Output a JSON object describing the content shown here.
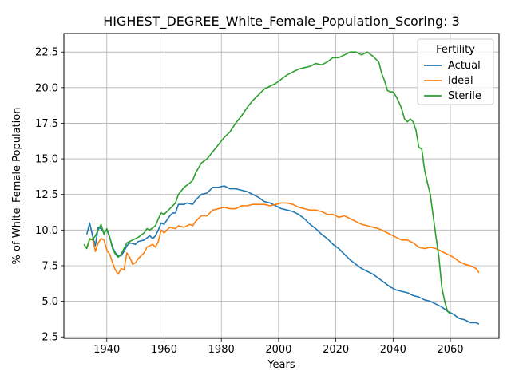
{
  "chart_data": {
    "type": "line",
    "title": "HIGHEST_DEGREE_White_Female_Population_Scoring: 3",
    "xlabel": "Years",
    "ylabel": "% of White_Female Population",
    "xlim": [
      1925,
      2077
    ],
    "ylim": [
      2.4,
      23.8
    ],
    "xticks": [
      1940,
      1960,
      1980,
      2000,
      2020,
      2040,
      2060
    ],
    "xtick_labels": [
      "1940",
      "1960",
      "1980",
      "2000",
      "2020",
      "2040",
      "2060"
    ],
    "yticks": [
      2.5,
      5.0,
      7.5,
      10.0,
      12.5,
      15.0,
      17.5,
      20.0,
      22.5
    ],
    "ytick_labels": [
      "2.5",
      "5.0",
      "7.5",
      "10.0",
      "12.5",
      "15.0",
      "17.5",
      "20.0",
      "22.5"
    ],
    "grid": true,
    "legend_title": "Fertility",
    "legend_position": "top-right",
    "series": [
      {
        "name": "Actual",
        "color": "#1f77b4",
        "points": [
          [
            1933,
            9.7
          ],
          [
            1934,
            10.5
          ],
          [
            1935,
            9.6
          ],
          [
            1936,
            8.9
          ],
          [
            1937,
            10.2
          ],
          [
            1938,
            10.1
          ],
          [
            1939,
            9.8
          ],
          [
            1940,
            10.0
          ],
          [
            1941,
            9.5
          ],
          [
            1942,
            8.8
          ],
          [
            1943,
            8.4
          ],
          [
            1944,
            8.2
          ],
          [
            1945,
            8.2
          ],
          [
            1946,
            8.5
          ],
          [
            1947,
            8.9
          ],
          [
            1948,
            9.1
          ],
          [
            1950,
            9.0
          ],
          [
            1951,
            9.2
          ],
          [
            1953,
            9.3
          ],
          [
            1955,
            9.6
          ],
          [
            1956,
            9.4
          ],
          [
            1957,
            9.6
          ],
          [
            1958,
            10.0
          ],
          [
            1959,
            10.5
          ],
          [
            1960,
            10.4
          ],
          [
            1962,
            11.0
          ],
          [
            1963,
            11.2
          ],
          [
            1964,
            11.2
          ],
          [
            1965,
            11.8
          ],
          [
            1967,
            11.8
          ],
          [
            1968,
            11.9
          ],
          [
            1970,
            11.8
          ],
          [
            1971,
            12.1
          ],
          [
            1973,
            12.5
          ],
          [
            1975,
            12.6
          ],
          [
            1977,
            13.0
          ],
          [
            1979,
            13.0
          ],
          [
            1981,
            13.1
          ],
          [
            1983,
            12.9
          ],
          [
            1985,
            12.9
          ],
          [
            1987,
            12.8
          ],
          [
            1989,
            12.7
          ],
          [
            1991,
            12.5
          ],
          [
            1993,
            12.3
          ],
          [
            1995,
            12.0
          ],
          [
            1997,
            11.9
          ],
          [
            1999,
            11.7
          ],
          [
            2001,
            11.5
          ],
          [
            2003,
            11.4
          ],
          [
            2005,
            11.3
          ],
          [
            2007,
            11.1
          ],
          [
            2009,
            10.8
          ],
          [
            2011,
            10.4
          ],
          [
            2013,
            10.1
          ],
          [
            2015,
            9.7
          ],
          [
            2017,
            9.4
          ],
          [
            2019,
            9.0
          ],
          [
            2021,
            8.7
          ],
          [
            2023,
            8.3
          ],
          [
            2025,
            7.9
          ],
          [
            2027,
            7.6
          ],
          [
            2029,
            7.3
          ],
          [
            2031,
            7.1
          ],
          [
            2033,
            6.9
          ],
          [
            2035,
            6.6
          ],
          [
            2037,
            6.3
          ],
          [
            2039,
            6.0
          ],
          [
            2041,
            5.8
          ],
          [
            2043,
            5.7
          ],
          [
            2045,
            5.6
          ],
          [
            2047,
            5.4
          ],
          [
            2049,
            5.3
          ],
          [
            2051,
            5.1
          ],
          [
            2053,
            5.0
          ],
          [
            2055,
            4.8
          ],
          [
            2057,
            4.6
          ],
          [
            2059,
            4.3
          ],
          [
            2061,
            4.1
          ],
          [
            2063,
            3.8
          ],
          [
            2065,
            3.7
          ],
          [
            2067,
            3.5
          ],
          [
            2069,
            3.5
          ],
          [
            2070,
            3.4
          ]
        ]
      },
      {
        "name": "Ideal",
        "color": "#ff7f0e",
        "points": [
          [
            1933,
            8.8
          ],
          [
            1934,
            9.3
          ],
          [
            1935,
            9.4
          ],
          [
            1936,
            8.5
          ],
          [
            1937,
            9.1
          ],
          [
            1938,
            9.4
          ],
          [
            1939,
            9.3
          ],
          [
            1940,
            8.6
          ],
          [
            1941,
            8.3
          ],
          [
            1942,
            7.7
          ],
          [
            1943,
            7.2
          ],
          [
            1944,
            6.9
          ],
          [
            1945,
            7.3
          ],
          [
            1946,
            7.2
          ],
          [
            1947,
            8.4
          ],
          [
            1948,
            8.1
          ],
          [
            1949,
            7.6
          ],
          [
            1950,
            7.7
          ],
          [
            1951,
            8.0
          ],
          [
            1953,
            8.4
          ],
          [
            1954,
            8.8
          ],
          [
            1956,
            9.0
          ],
          [
            1957,
            8.8
          ],
          [
            1958,
            9.2
          ],
          [
            1959,
            10.0
          ],
          [
            1960,
            9.8
          ],
          [
            1962,
            10.2
          ],
          [
            1964,
            10.1
          ],
          [
            1965,
            10.3
          ],
          [
            1967,
            10.2
          ],
          [
            1969,
            10.4
          ],
          [
            1970,
            10.3
          ],
          [
            1971,
            10.6
          ],
          [
            1973,
            11.0
          ],
          [
            1975,
            11.0
          ],
          [
            1977,
            11.4
          ],
          [
            1979,
            11.5
          ],
          [
            1981,
            11.6
          ],
          [
            1983,
            11.5
          ],
          [
            1985,
            11.5
          ],
          [
            1987,
            11.7
          ],
          [
            1989,
            11.7
          ],
          [
            1991,
            11.8
          ],
          [
            1993,
            11.8
          ],
          [
            1995,
            11.8
          ],
          [
            1997,
            11.7
          ],
          [
            1999,
            11.8
          ],
          [
            2001,
            11.9
          ],
          [
            2003,
            11.9
          ],
          [
            2005,
            11.8
          ],
          [
            2007,
            11.6
          ],
          [
            2009,
            11.5
          ],
          [
            2011,
            11.4
          ],
          [
            2013,
            11.4
          ],
          [
            2015,
            11.3
          ],
          [
            2017,
            11.1
          ],
          [
            2019,
            11.1
          ],
          [
            2021,
            10.9
          ],
          [
            2023,
            11.0
          ],
          [
            2025,
            10.8
          ],
          [
            2027,
            10.6
          ],
          [
            2029,
            10.4
          ],
          [
            2031,
            10.3
          ],
          [
            2033,
            10.2
          ],
          [
            2035,
            10.1
          ],
          [
            2037,
            9.9
          ],
          [
            2039,
            9.7
          ],
          [
            2041,
            9.5
          ],
          [
            2043,
            9.3
          ],
          [
            2045,
            9.3
          ],
          [
            2047,
            9.1
          ],
          [
            2049,
            8.8
          ],
          [
            2051,
            8.7
          ],
          [
            2053,
            8.8
          ],
          [
            2055,
            8.7
          ],
          [
            2057,
            8.5
          ],
          [
            2059,
            8.3
          ],
          [
            2061,
            8.1
          ],
          [
            2063,
            7.8
          ],
          [
            2065,
            7.6
          ],
          [
            2067,
            7.5
          ],
          [
            2069,
            7.3
          ],
          [
            2070,
            7.0
          ]
        ]
      },
      {
        "name": "Sterile",
        "color": "#2ca02c",
        "points": [
          [
            1932,
            9.0
          ],
          [
            1933,
            8.7
          ],
          [
            1934,
            9.4
          ],
          [
            1935,
            9.3
          ],
          [
            1936,
            9.6
          ],
          [
            1937,
            10.0
          ],
          [
            1938,
            10.4
          ],
          [
            1939,
            9.7
          ],
          [
            1940,
            10.1
          ],
          [
            1941,
            9.5
          ],
          [
            1942,
            8.7
          ],
          [
            1943,
            8.3
          ],
          [
            1944,
            8.1
          ],
          [
            1945,
            8.3
          ],
          [
            1946,
            8.7
          ],
          [
            1947,
            9.1
          ],
          [
            1948,
            9.2
          ],
          [
            1949,
            9.3
          ],
          [
            1951,
            9.5
          ],
          [
            1953,
            9.8
          ],
          [
            1954,
            10.1
          ],
          [
            1955,
            10.0
          ],
          [
            1957,
            10.3
          ],
          [
            1958,
            10.8
          ],
          [
            1959,
            11.2
          ],
          [
            1960,
            11.1
          ],
          [
            1962,
            11.5
          ],
          [
            1964,
            11.9
          ],
          [
            1965,
            12.5
          ],
          [
            1967,
            13.0
          ],
          [
            1969,
            13.3
          ],
          [
            1970,
            13.5
          ],
          [
            1971,
            14.0
          ],
          [
            1973,
            14.7
          ],
          [
            1975,
            15.0
          ],
          [
            1977,
            15.5
          ],
          [
            1979,
            16.0
          ],
          [
            1981,
            16.5
          ],
          [
            1983,
            16.9
          ],
          [
            1985,
            17.5
          ],
          [
            1987,
            18.0
          ],
          [
            1989,
            18.6
          ],
          [
            1991,
            19.1
          ],
          [
            1993,
            19.5
          ],
          [
            1995,
            19.9
          ],
          [
            1997,
            20.1
          ],
          [
            1999,
            20.3
          ],
          [
            2001,
            20.6
          ],
          [
            2003,
            20.9
          ],
          [
            2005,
            21.1
          ],
          [
            2007,
            21.3
          ],
          [
            2009,
            21.4
          ],
          [
            2011,
            21.5
          ],
          [
            2013,
            21.7
          ],
          [
            2015,
            21.6
          ],
          [
            2017,
            21.8
          ],
          [
            2019,
            22.1
          ],
          [
            2021,
            22.1
          ],
          [
            2023,
            22.3
          ],
          [
            2025,
            22.5
          ],
          [
            2027,
            22.5
          ],
          [
            2029,
            22.3
          ],
          [
            2031,
            22.5
          ],
          [
            2033,
            22.2
          ],
          [
            2035,
            21.8
          ],
          [
            2036,
            21.0
          ],
          [
            2037,
            20.5
          ],
          [
            2038,
            19.8
          ],
          [
            2039,
            19.7
          ],
          [
            2040,
            19.7
          ],
          [
            2041,
            19.4
          ],
          [
            2042,
            19.0
          ],
          [
            2043,
            18.5
          ],
          [
            2044,
            17.8
          ],
          [
            2045,
            17.6
          ],
          [
            2046,
            17.8
          ],
          [
            2047,
            17.6
          ],
          [
            2048,
            17.0
          ],
          [
            2049,
            15.8
          ],
          [
            2050,
            15.7
          ],
          [
            2051,
            14.2
          ],
          [
            2052,
            13.3
          ],
          [
            2053,
            12.5
          ],
          [
            2054,
            11.0
          ],
          [
            2055,
            9.5
          ],
          [
            2056,
            8.1
          ],
          [
            2057,
            6.0
          ],
          [
            2058,
            5.0
          ],
          [
            2059,
            4.3
          ],
          [
            2060,
            4.1
          ]
        ]
      }
    ]
  }
}
